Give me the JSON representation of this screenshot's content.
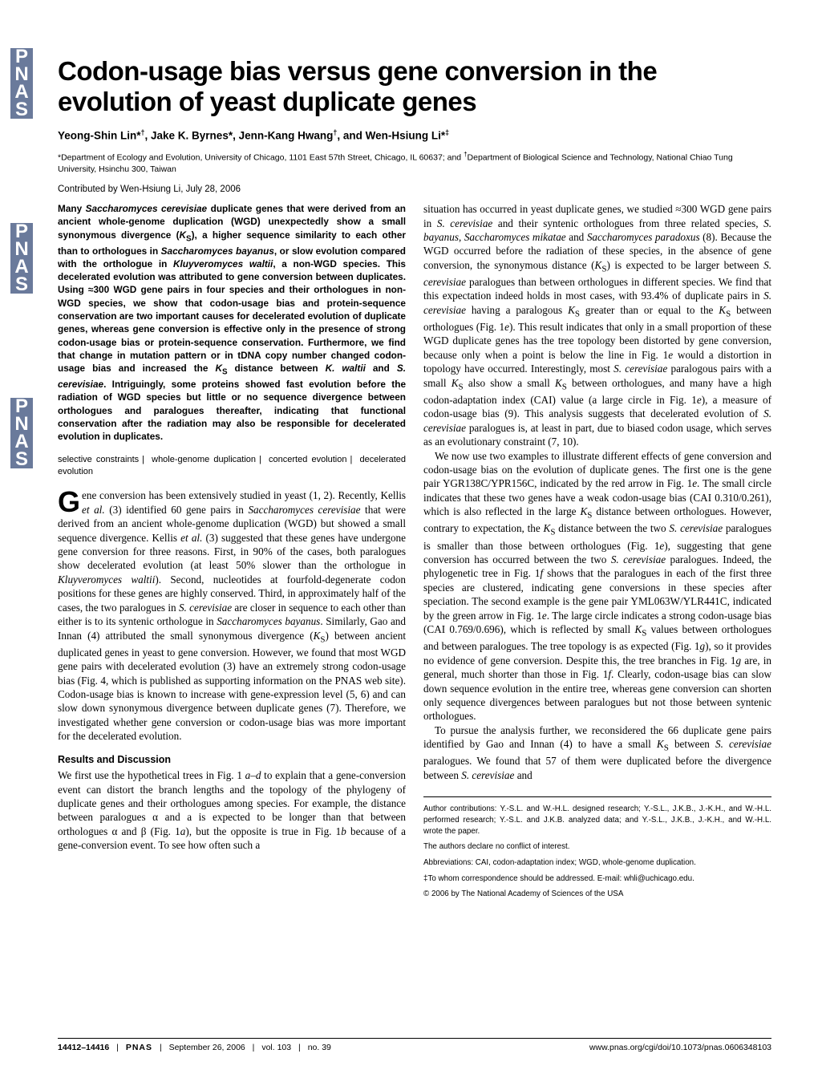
{
  "sidebar": {
    "label": "PNAS"
  },
  "title": "Codon-usage bias versus gene conversion in the evolution of yeast duplicate genes",
  "authors_html": "Yeong-Shin Lin*<sup>†</sup>, Jake K. Byrnes*, Jenn-Kang Hwang<sup>†</sup>, and Wen-Hsiung Li*<sup>‡</sup>",
  "affil_html": "*Department of Ecology and Evolution, University of Chicago, 1101 East 57th Street, Chicago, IL 60637; and <sup>†</sup>Department of Biological Science and Technology, National Chiao Tung University, Hsinchu 300, Taiwan",
  "contributed": "Contributed by Wen-Hsiung Li, July 28, 2006",
  "abstract_html": "Many <span class='ital'>Saccharomyces cerevisiae</span> duplicate genes that were derived from an ancient whole-genome duplication (WGD) unexpectedly show a small synonymous divergence (<span class='ksub'>K</span><sub>S</sub>), a higher sequence similarity to each other than to orthologues in <span class='ital'>Saccharomyces bayanus</span>, or slow evolution compared with the orthologue in <span class='ital'>Kluyveromyces waltii</span>, a non-WGD species. This decelerated evolution was attributed to gene conversion between duplicates. Using ≈300 WGD gene pairs in four species and their orthologues in non-WGD species, we show that codon-usage bias and protein-sequence conservation are two important causes for decelerated evolution of duplicate genes, whereas gene conversion is effective only in the presence of strong codon-usage bias or protein-sequence conservation. Furthermore, we find that change in mutation pattern or in tDNA copy number changed codon-usage bias and increased the <span class='ksub'>K</span><sub>S</sub> distance between <span class='ital'>K. waltii</span> and <span class='ital'>S. cerevisiae</span>. Intriguingly, some proteins showed fast evolution before the radiation of WGD species but little or no sequence divergence between orthologues and paralogues thereafter, indicating that functional conservation after the radiation may also be responsible for decelerated evolution in duplicates.",
  "keywords": [
    "selective constraints",
    "whole-genome duplication",
    "concerted evolution",
    "decelerated evolution"
  ],
  "intro_first_html": "ene conversion has been extensively studied in yeast (1, 2). Recently, Kellis <span class='ital'>et al.</span> (3) identified 60 gene pairs in <span class='ital'>Saccharomyces cerevisiae</span> that were derived from an ancient whole-genome duplication (WGD) but showed a small sequence divergence. Kellis <span class='ital'>et al.</span> (3) suggested that these genes have undergone gene conversion for three reasons. First, in 90% of the cases, both paralogues show decelerated evolution (at least 50% slower than the orthologue in <span class='ital'>Kluyveromyces waltii</span>). Second, nucleotides at fourfold-degenerate codon positions for these genes are highly conserved. Third, in approximately half of the cases, the two paralogues in <span class='ital'>S. cerevisiae</span> are closer in sequence to each other than either is to its syntenic orthologue in <span class='ital'>Saccharomyces bayanus</span>. Similarly, Gao and Innan (4) attributed the small synonymous divergence (<span class='ksub'>K</span><sub>S</sub>) between ancient duplicated genes in yeast to gene conversion. However, we found that most WGD gene pairs with decelerated evolution (3) have an extremely strong codon-usage bias (Fig. 4, which is published as supporting information on the PNAS web site). Codon-usage bias is known to increase with gene-expression level (5, 6) and can slow down synonymous divergence between duplicate genes (7). Therefore, we investigated whether gene conversion or codon-usage bias was more important for the decelerated evolution.",
  "section_head": "Results and Discussion",
  "results_p1_html": "We first use the hypothetical trees in Fig. 1 <span class='ital'>a–d</span> to explain that a gene-conversion event can distort the branch lengths and the topology of the phylogeny of duplicate genes and their orthologues among species. For example, the distance between paralogues α and a is expected to be longer than that between orthologues α and β (Fig. 1<span class='ital'>a</span>), but the opposite is true in Fig. 1<span class='ital'>b</span> because of a gene-conversion event. To see how often such a",
  "right_p1_html": "situation has occurred in yeast duplicate genes, we studied ≈300 WGD gene pairs in <span class='ital'>S. cerevisiae</span> and their syntenic orthologues from three related species, <span class='ital'>S. bayanus</span>, <span class='ital'>Saccharomyces mikatae</span> and <span class='ital'>Saccharomyces paradoxus</span> (8). Because the WGD occurred before the radiation of these species, in the absence of gene conversion, the synonymous distance (<span class='ksub'>K</span><sub>S</sub>) is expected to be larger between <span class='ital'>S. cerevisiae</span> paralogues than between orthologues in different species. We find that this expectation indeed holds in most cases, with 93.4% of duplicate pairs in <span class='ital'>S. cerevisiae</span> having a paralogous <span class='ksub'>K</span><sub>S</sub> greater than or equal to the <span class='ksub'>K</span><sub>S</sub> between orthologues (Fig. 1<span class='ital'>e</span>). This result indicates that only in a small proportion of these WGD duplicate genes has the tree topology been distorted by gene conversion, because only when a point is below the line in Fig. 1<span class='ital'>e</span> would a distortion in topology have occurred. Interestingly, most <span class='ital'>S. cerevisiae</span> paralogous pairs with a small <span class='ksub'>K</span><sub>S</sub> also show a small <span class='ksub'>K</span><sub>S</sub> between orthologues, and many have a high codon-adaptation index (CAI) value (a large circle in Fig. 1<span class='ital'>e</span>), a measure of codon-usage bias (9). This analysis suggests that decelerated evolution of <span class='ital'>S. cerevisiae</span> paralogues is, at least in part, due to biased codon usage, which serves as an evolutionary constraint (7, 10).",
  "right_p2_html": "We now use two examples to illustrate different effects of gene conversion and codon-usage bias on the evolution of duplicate genes. The first one is the gene pair YGR138C/YPR156C, indicated by the red arrow in Fig. 1<span class='ital'>e</span>. The small circle indicates that these two genes have a weak codon-usage bias (CAI 0.310/0.261), which is also reflected in the large <span class='ksub'>K</span><sub>S</sub> distance between orthologues. However, contrary to expectation, the <span class='ksub'>K</span><sub>S</sub> distance between the two <span class='ital'>S. cerevisiae</span> paralogues is smaller than those between orthologues (Fig. 1<span class='ital'>e</span>), suggesting that gene conversion has occurred between the two <span class='ital'>S. cerevisiae</span> paralogues. Indeed, the phylogenetic tree in Fig. 1<span class='ital'>f</span> shows that the paralogues in each of the first three species are clustered, indicating gene conversions in these species after speciation. The second example is the gene pair YML063W/YLR441C, indicated by the green arrow in Fig. 1<span class='ital'>e</span>. The large circle indicates a strong codon-usage bias (CAI 0.769/0.696), which is reflected by small <span class='ksub'>K</span><sub>S</sub> values between orthologues and between paralogues. The tree topology is as expected (Fig. 1<span class='ital'>g</span>), so it provides no evidence of gene conversion. Despite this, the tree branches in Fig. 1<span class='ital'>g</span> are, in general, much shorter than those in Fig. 1<span class='ital'>f</span>. Clearly, codon-usage bias can slow down sequence evolution in the entire tree, whereas gene conversion can shorten only sequence divergences between paralogues but not those between syntenic orthologues.",
  "right_p3_html": "To pursue the analysis further, we reconsidered the 66 duplicate gene pairs identified by Gao and Innan (4) to have a small <span class='ksub'>K</span><sub>S</sub> between <span class='ital'>S. cerevisiae</span> paralogues. We found that 57 of them were duplicated before the divergence between <span class='ital'>S. cerevisiae</span> and",
  "footnotes": {
    "contrib": "Author contributions: Y.-S.L. and W.-H.L. designed research; Y.-S.L., J.K.B., J.-K.H., and W.-H.L. performed research; Y.-S.L. and J.K.B. analyzed data; and Y.-S.L., J.K.B., J.-K.H., and W.-H.L. wrote the paper.",
    "conflict": "The authors declare no conflict of interest.",
    "abbrev": "Abbreviations: CAI, codon-adaptation index; WGD, whole-genome duplication.",
    "corresp": "‡To whom correspondence should be addressed. E-mail: whli@uchicago.edu.",
    "copyright": "© 2006 by The National Academy of Sciences of the USA"
  },
  "footer": {
    "pages": "14412–14416",
    "journal": "PNAS",
    "date": "September 26, 2006",
    "vol": "vol. 103",
    "issue": "no. 39",
    "url": "www.pnas.org/cgi/doi/10.1073/pnas.0606348103"
  }
}
